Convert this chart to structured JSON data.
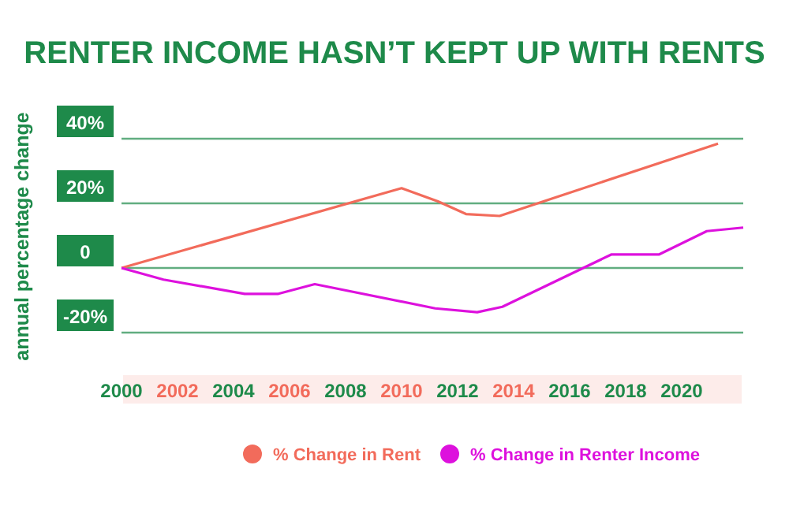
{
  "chart_data": {
    "type": "line",
    "title": "RENTER INCOME HASN’T KEPT UP WITH RENTS",
    "ylabel": "annual percentage change",
    "xlim": [
      2000,
      2022.2
    ],
    "xticks": [
      2000,
      2002,
      2004,
      2006,
      2008,
      2010,
      2012,
      2014,
      2016,
      2018,
      2020
    ],
    "ylim": [
      -20,
      40
    ],
    "yticks": [
      {
        "value": -20,
        "label": "-20%"
      },
      {
        "value": 0,
        "label": "0"
      },
      {
        "value": 20,
        "label": "20%"
      },
      {
        "value": 40,
        "label": "40%"
      }
    ],
    "grid": "y",
    "legend": "bottom",
    "marker": "none",
    "line_style": "solid",
    "series": [
      {
        "name": "% Change in Rent",
        "color": "#f26b5b",
        "x": [
          2000,
          2010,
          2011.3,
          2012.3,
          2013.5,
          2021.3
        ],
        "values": [
          0,
          24.7,
          20.6,
          16.7,
          16.1,
          38.5
        ]
      },
      {
        "name": "% Change in Renter Income",
        "color": "#dd11dd",
        "x": [
          2000,
          2001.5,
          2004.4,
          2005.6,
          2006.9,
          2011.2,
          2012.7,
          2013.6,
          2017.5,
          2019.2,
          2020.9,
          2022.2
        ],
        "values": [
          0,
          -3.6,
          -8,
          -8,
          -5,
          -12.5,
          -13.7,
          -12,
          4.2,
          4.2,
          11.4,
          12.5
        ]
      }
    ]
  }
}
